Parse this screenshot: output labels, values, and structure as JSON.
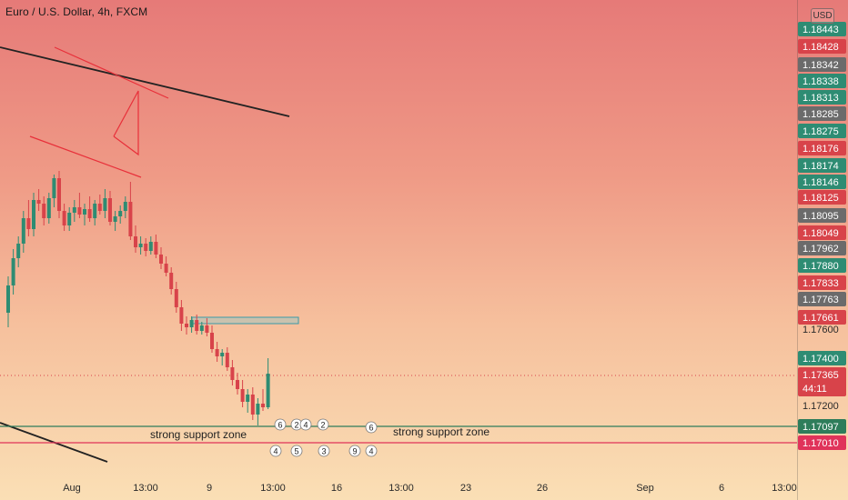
{
  "header": {
    "title": "Euro / U.S. Dollar, 4h, FXCM",
    "currency_badge": "USD"
  },
  "colors": {
    "up": "#2e8c73",
    "down": "#d8434a",
    "grey_tag": "#6b6b6b",
    "trendline": "#222222",
    "pattern": "#e8303a",
    "zone": "#3b9aa8",
    "support_green": "#2e7d5b",
    "support_red": "#e0335a"
  },
  "chart_data": {
    "type": "candlestick",
    "symbol": "Euro / U.S. Dollar",
    "interval": "4h",
    "source": "FXCM",
    "y_axis_labels": [
      "1.17600",
      "1.17200"
    ],
    "x_axis_labels": [
      "Aug",
      "13:00",
      "9",
      "13:00",
      "16",
      "13:00",
      "23",
      "26",
      "Sep",
      "6",
      "13:00"
    ],
    "price_tags": [
      {
        "value": "1.18443",
        "kind": "green"
      },
      {
        "value": "1.18428",
        "kind": "red"
      },
      {
        "value": "1.18342",
        "kind": "grey"
      },
      {
        "value": "1.18338",
        "kind": "green"
      },
      {
        "value": "1.18313",
        "kind": "green"
      },
      {
        "value": "1.18285",
        "kind": "grey"
      },
      {
        "value": "1.18275",
        "kind": "green"
      },
      {
        "value": "1.18176",
        "kind": "red"
      },
      {
        "value": "1.18174",
        "kind": "green"
      },
      {
        "value": "1.18146",
        "kind": "green"
      },
      {
        "value": "1.18125",
        "kind": "red"
      },
      {
        "value": "1.18095",
        "kind": "grey"
      },
      {
        "value": "1.18049",
        "kind": "red"
      },
      {
        "value": "1.17962",
        "kind": "grey"
      },
      {
        "value": "1.17880",
        "kind": "green"
      },
      {
        "value": "1.17833",
        "kind": "red"
      },
      {
        "value": "1.17763",
        "kind": "grey"
      },
      {
        "value": "1.17661",
        "kind": "red"
      },
      {
        "value": "1.17400",
        "kind": "green"
      },
      {
        "value": "1.17365",
        "kind": "red",
        "sub": "44:11"
      },
      {
        "value": "1.17097",
        "kind": "support_green"
      },
      {
        "value": "1.17010",
        "kind": "support_red"
      }
    ],
    "current_price": 1.17365,
    "countdown": "44:11",
    "support_levels": [
      1.17097,
      1.1701
    ],
    "annotations": [
      "strong support zone",
      "strong support zone"
    ],
    "event_badges": [
      "6",
      "2",
      "4",
      "2",
      "6",
      "4",
      "5",
      "3",
      "9",
      "4"
    ],
    "candles": [
      [
        1.177,
        1.179,
        1.1762,
        1.1785
      ],
      [
        1.1785,
        1.1805,
        1.178,
        1.18
      ],
      [
        1.18,
        1.1812,
        1.1795,
        1.1808
      ],
      [
        1.1808,
        1.1826,
        1.1803,
        1.1822
      ],
      [
        1.1822,
        1.1832,
        1.1812,
        1.1816
      ],
      [
        1.1816,
        1.1836,
        1.1812,
        1.1832
      ],
      [
        1.1832,
        1.1838,
        1.1826,
        1.183
      ],
      [
        1.183,
        1.1834,
        1.1818,
        1.1822
      ],
      [
        1.1822,
        1.1836,
        1.1819,
        1.1833
      ],
      [
        1.1833,
        1.1846,
        1.1828,
        1.1844
      ],
      [
        1.1844,
        1.1848,
        1.1822,
        1.1826
      ],
      [
        1.1826,
        1.183,
        1.1815,
        1.1818
      ],
      [
        1.1818,
        1.1828,
        1.1815,
        1.1825
      ],
      [
        1.1825,
        1.1832,
        1.182,
        1.1828
      ],
      [
        1.1828,
        1.1836,
        1.1822,
        1.1824
      ],
      [
        1.1824,
        1.183,
        1.1818,
        1.1827
      ],
      [
        1.1827,
        1.1834,
        1.182,
        1.1822
      ],
      [
        1.1822,
        1.1832,
        1.1818,
        1.183
      ],
      [
        1.183,
        1.1835,
        1.1824,
        1.1826
      ],
      [
        1.1826,
        1.1838,
        1.1822,
        1.1833
      ],
      [
        1.1833,
        1.1837,
        1.1818,
        1.182
      ],
      [
        1.182,
        1.1826,
        1.1815,
        1.1823
      ],
      [
        1.1823,
        1.1829,
        1.1819,
        1.1826
      ],
      [
        1.1826,
        1.1834,
        1.1822,
        1.1831
      ],
      [
        1.1831,
        1.1842,
        1.181,
        1.1812
      ],
      [
        1.1812,
        1.1818,
        1.1803,
        1.1806
      ],
      [
        1.1806,
        1.1812,
        1.1802,
        1.1808
      ],
      [
        1.1808,
        1.1811,
        1.1801,
        1.1804
      ],
      [
        1.1804,
        1.1812,
        1.1802,
        1.1809
      ],
      [
        1.1809,
        1.1813,
        1.18,
        1.1802
      ],
      [
        1.1802,
        1.1806,
        1.1794,
        1.1797
      ],
      [
        1.1797,
        1.1801,
        1.179,
        1.1792
      ],
      [
        1.1792,
        1.1795,
        1.178,
        1.1783
      ],
      [
        1.1783,
        1.1787,
        1.177,
        1.1773
      ],
      [
        1.1773,
        1.1777,
        1.176,
        1.1764
      ],
      [
        1.1764,
        1.1768,
        1.1758,
        1.1762
      ],
      [
        1.1762,
        1.1768,
        1.1759,
        1.1766
      ],
      [
        1.1766,
        1.1769,
        1.1758,
        1.176
      ],
      [
        1.176,
        1.1765,
        1.1758,
        1.1763
      ],
      [
        1.1763,
        1.1767,
        1.1757,
        1.1759
      ],
      [
        1.1759,
        1.1763,
        1.1748,
        1.175
      ],
      [
        1.175,
        1.1754,
        1.1743,
        1.1746
      ],
      [
        1.1746,
        1.175,
        1.1741,
        1.1748
      ],
      [
        1.1748,
        1.1751,
        1.1738,
        1.174
      ],
      [
        1.174,
        1.1744,
        1.173,
        1.1733
      ],
      [
        1.1733,
        1.1737,
        1.1725,
        1.1728
      ],
      [
        1.1728,
        1.1733,
        1.1718,
        1.1721
      ],
      [
        1.1721,
        1.1728,
        1.1715,
        1.1725
      ],
      [
        1.1725,
        1.1729,
        1.1711,
        1.1714
      ],
      [
        1.1714,
        1.1723,
        1.1708,
        1.172
      ],
      [
        1.172,
        1.1728,
        1.1716,
        1.1718
      ],
      [
        1.1718,
        1.1745,
        1.1717,
        1.17365
      ]
    ]
  }
}
